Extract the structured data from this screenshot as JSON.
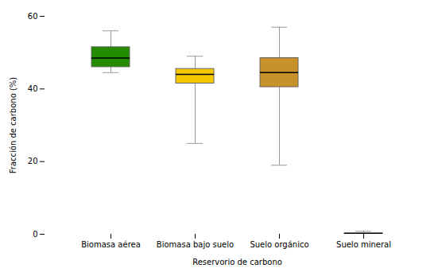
{
  "chart_data": {
    "type": "box",
    "categories": [
      "Biomasa aérea",
      "Biomasa bajo suelo",
      "Suelo orgánico",
      "Suelo mineral"
    ],
    "boxes": [
      {
        "whislo": 44.5,
        "q1": 46.0,
        "med": 48.5,
        "q3": 51.5,
        "whishi": 56.0
      },
      {
        "whislo": 25.0,
        "q1": 41.5,
        "med": 44.0,
        "q3": 45.5,
        "whishi": 49.0
      },
      {
        "whislo": 19.0,
        "q1": 40.5,
        "med": 44.5,
        "q3": 48.5,
        "whishi": 57.0
      },
      {
        "whislo": 0.0,
        "q1": 0.05,
        "med": 0.15,
        "q3": 0.3,
        "whishi": 0.8
      }
    ],
    "colors": [
      "#228B00",
      "#F5C800",
      "#C8922A",
      "#8b7355"
    ],
    "xlabel": "Reservorio de carbono",
    "ylabel": "Fracción de carbono (%)",
    "ylim": [
      0,
      60
    ],
    "yticks": [
      0,
      20,
      40,
      60
    ],
    "grid": false
  }
}
